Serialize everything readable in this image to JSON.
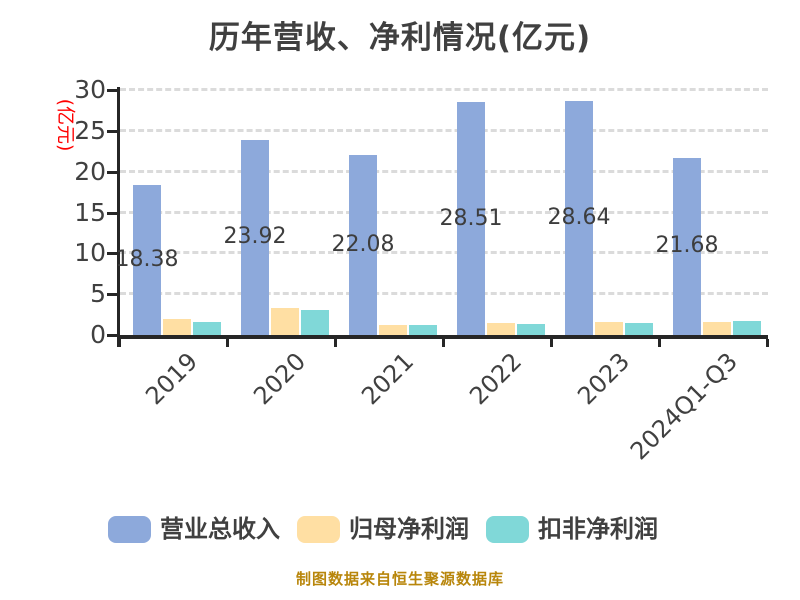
{
  "title": "历年营收、净利情况(亿元)",
  "y_axis": {
    "unit_label": "(亿元)",
    "unit_label_color": "#ff0000",
    "ticks": [
      0,
      5,
      10,
      15,
      20,
      25,
      30
    ]
  },
  "source_note": "制图数据来自恒生聚源数据库",
  "colors": {
    "revenue_bar": "#8da9db",
    "net_profit_bar": "#ffdfa3",
    "deducted_profit_bar": "#80d8d8",
    "text": "#404040",
    "axis": "#262626",
    "gridline": "#dbdbdb",
    "unit_label": "#ff0000",
    "source_note": "#b8860b"
  },
  "legend": {
    "items": [
      {
        "label": "营业总收入",
        "color": "#8da9db"
      },
      {
        "label": "归母净利润",
        "color": "#ffdfa3"
      },
      {
        "label": "扣非净利润",
        "color": "#80d8d8"
      }
    ]
  },
  "chart_data": {
    "type": "bar",
    "title": "历年营收、净利情况(亿元)",
    "categories": [
      "2019",
      "2020",
      "2021",
      "2022",
      "2023",
      "2024Q1-Q3"
    ],
    "series": [
      {
        "name": "营业总收入",
        "color": "#8da9db",
        "values": [
          18.38,
          23.92,
          22.08,
          28.51,
          28.64,
          21.68
        ],
        "data_labels": [
          "18.38",
          "23.92",
          "22.08",
          "28.51",
          "28.64",
          "21.68"
        ]
      },
      {
        "name": "归母净利润",
        "color": "#ffdfa3",
        "values": [
          1.95,
          3.25,
          1.25,
          1.5,
          1.6,
          1.6
        ],
        "data_labels": null
      },
      {
        "name": "扣非净利润",
        "color": "#80d8d8",
        "values": [
          1.65,
          3.1,
          1.2,
          1.3,
          1.5,
          1.7
        ],
        "data_labels": null
      }
    ],
    "ylim": [
      0,
      30
    ],
    "ylabel": "(亿元)",
    "xlabel": "",
    "grid": "horizontal-dashed",
    "x_tick_rotation": -45,
    "legend_position": "bottom"
  }
}
